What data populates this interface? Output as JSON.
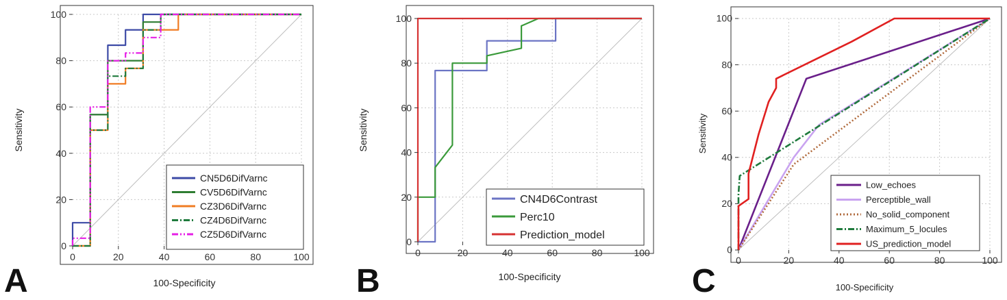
{
  "chart_data": [
    {
      "type": "line",
      "panel_label": "A",
      "xlabel": "100-Specificity",
      "ylabel": "Sensitivity",
      "xlim": [
        0,
        100
      ],
      "ylim": [
        0,
        100
      ],
      "xticks": [
        "0",
        "20",
        "40",
        "60",
        "80",
        "100"
      ],
      "yticks": [
        "0",
        "20",
        "40",
        "60",
        "80",
        "100"
      ],
      "grid": true,
      "diagonal_reference": true,
      "legend_position": "bottom-right",
      "series": [
        {
          "name": "CN5D6DifVarnc",
          "color": "#3c4aa6",
          "dash": "solid",
          "x": [
            0,
            0,
            7.7,
            7.7,
            15.4,
            15.4,
            23.1,
            23.1,
            30.8,
            30.8,
            100
          ],
          "y": [
            0,
            10,
            10,
            56.7,
            56.7,
            86.7,
            86.7,
            93.3,
            93.3,
            100,
            100
          ]
        },
        {
          "name": "CV5D6DifVarnc",
          "color": "#2e7d32",
          "dash": "solid",
          "x": [
            0,
            7.7,
            7.7,
            15.4,
            15.4,
            30.8,
            30.8,
            38.5,
            38.5,
            100
          ],
          "y": [
            0,
            0,
            56.7,
            56.7,
            80,
            80,
            96.7,
            96.7,
            100,
            100
          ]
        },
        {
          "name": "CZ3D6DifVarnc",
          "color": "#f07c23",
          "dash": "solid",
          "x": [
            0,
            7.7,
            7.7,
            15.4,
            15.4,
            23.1,
            23.1,
            30.8,
            30.8,
            46.2,
            46.2,
            100
          ],
          "y": [
            0,
            0,
            50,
            50,
            70,
            70,
            76.7,
            76.7,
            93.3,
            93.3,
            100,
            100
          ]
        },
        {
          "name": "CZ4D6DifVarnc",
          "color": "#1e7a3c",
          "dash": "dashdot",
          "x": [
            0,
            7.7,
            7.7,
            15.4,
            15.4,
            23.1,
            23.1,
            30.8,
            30.8,
            38.5,
            38.5,
            100
          ],
          "y": [
            0,
            0,
            50,
            50,
            73.3,
            73.3,
            76.7,
            76.7,
            93.3,
            93.3,
            100,
            100
          ]
        },
        {
          "name": "CZ5D6DifVarnc",
          "color": "#e61fe6",
          "dash": "dashdotdot",
          "x": [
            0,
            0,
            7.7,
            7.7,
            15.4,
            15.4,
            23.1,
            23.1,
            30.8,
            30.8,
            38.5,
            38.5,
            100
          ],
          "y": [
            0,
            3.3,
            3.3,
            60,
            60,
            80,
            80,
            83.3,
            83.3,
            90,
            90,
            100,
            100
          ]
        }
      ]
    },
    {
      "type": "line",
      "panel_label": "B",
      "xlabel": "100-Specificity",
      "ylabel": "Sensitivity",
      "xlim": [
        0,
        100
      ],
      "ylim": [
        0,
        100
      ],
      "xticks": [
        "0",
        "20",
        "40",
        "60",
        "80",
        "100"
      ],
      "yticks": [
        "0",
        "20",
        "40",
        "60",
        "80",
        "100"
      ],
      "grid": true,
      "diagonal_reference": true,
      "legend_position": "bottom-right",
      "series": [
        {
          "name": "CN4D6Contrast",
          "color": "#6b74c4",
          "dash": "solid",
          "x": [
            0,
            7.7,
            7.7,
            30.8,
            30.8,
            61.5,
            61.5,
            100
          ],
          "y": [
            0,
            0,
            76.7,
            76.7,
            90,
            90,
            100,
            100
          ]
        },
        {
          "name": "Perc10",
          "color": "#3a9a3a",
          "dash": "solid",
          "x": [
            0,
            0,
            7.7,
            7.7,
            15.4,
            15.4,
            30.8,
            30.8,
            46.2,
            46.2,
            53.8,
            100
          ],
          "y": [
            0,
            20,
            20,
            33.3,
            43.3,
            80,
            80,
            83.3,
            86.7,
            96.7,
            100,
            100
          ]
        },
        {
          "name": "Prediction_model",
          "color": "#d63232",
          "dash": "solid",
          "x": [
            0,
            0,
            100
          ],
          "y": [
            0,
            100,
            100
          ]
        }
      ]
    },
    {
      "type": "line",
      "panel_label": "C",
      "xlabel": "100-Specificity",
      "ylabel": "Sensitivity",
      "xlim": [
        0,
        100
      ],
      "ylim": [
        0,
        100
      ],
      "xticks": [
        "0",
        "20",
        "40",
        "60",
        "80",
        "100"
      ],
      "yticks": [
        "0",
        "20",
        "40",
        "60",
        "80",
        "100"
      ],
      "grid": true,
      "diagonal_reference": true,
      "legend_position": "bottom-right",
      "series": [
        {
          "name": "Low_echoes",
          "color": "#6a1f8a",
          "dash": "solid",
          "x": [
            0,
            27,
            100
          ],
          "y": [
            0,
            74,
            100
          ]
        },
        {
          "name": "Perceptible_wall",
          "color": "#c9a3f0",
          "dash": "solid",
          "x": [
            0,
            22,
            32,
            100
          ],
          "y": [
            0,
            40,
            54,
            100
          ]
        },
        {
          "name": "No_solid_component",
          "color": "#b06a3c",
          "dash": "dotted",
          "x": [
            0,
            22,
            100
          ],
          "y": [
            0,
            37,
            100
          ]
        },
        {
          "name": "Maximum_5_locules",
          "color": "#1e7a3c",
          "dash": "dashdot",
          "x": [
            0,
            0,
            0.5,
            100
          ],
          "y": [
            0,
            24,
            32,
            100
          ]
        },
        {
          "name": "US_prediction_model",
          "color": "#e02020",
          "dash": "solid",
          "x": [
            0,
            0,
            4,
            4,
            8,
            12,
            15,
            15,
            30,
            45,
            62,
            100
          ],
          "y": [
            0,
            19,
            22,
            33,
            50,
            64,
            70,
            74,
            82,
            90,
            100,
            100
          ]
        }
      ]
    }
  ]
}
